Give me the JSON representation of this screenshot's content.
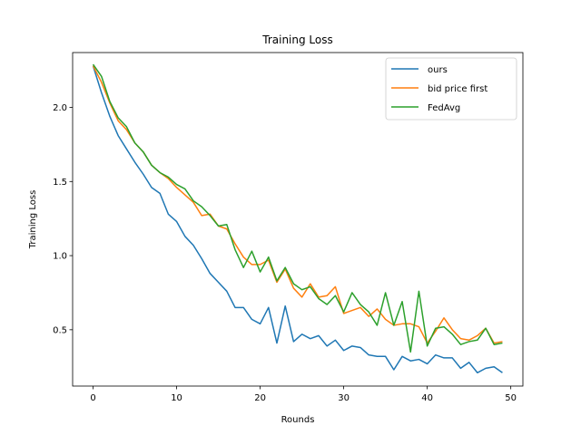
{
  "chart_data": {
    "type": "line",
    "title": "Training Loss",
    "xlabel": "Rounds",
    "ylabel": "Training Loss",
    "xlim": [
      -2.45,
      51.45
    ],
    "ylim": [
      0.12,
      2.37
    ],
    "xticks": [
      0,
      10,
      20,
      30,
      40,
      50
    ],
    "yticks": [
      0.5,
      1.0,
      1.5,
      2.0
    ],
    "yticks_text": [
      "0.5",
      "1.0",
      "1.5",
      "2.0"
    ],
    "grid": false,
    "legend_position": "top-right",
    "x": [
      0,
      1,
      2,
      3,
      4,
      5,
      6,
      7,
      8,
      9,
      10,
      11,
      12,
      13,
      14,
      15,
      16,
      17,
      18,
      19,
      20,
      21,
      22,
      23,
      24,
      25,
      26,
      27,
      28,
      29,
      30,
      31,
      32,
      33,
      34,
      35,
      36,
      37,
      38,
      39,
      40,
      41,
      42,
      43,
      44,
      45,
      46,
      47,
      48,
      49
    ],
    "series": [
      {
        "name": "ours",
        "color": "#1f77b4",
        "values": [
          2.28,
          2.1,
          1.94,
          1.81,
          1.72,
          1.63,
          1.55,
          1.46,
          1.42,
          1.28,
          1.23,
          1.13,
          1.07,
          0.98,
          0.88,
          0.82,
          0.76,
          0.65,
          0.65,
          0.57,
          0.54,
          0.65,
          0.41,
          0.66,
          0.42,
          0.47,
          0.44,
          0.46,
          0.39,
          0.43,
          0.36,
          0.39,
          0.38,
          0.33,
          0.32,
          0.32,
          0.23,
          0.32,
          0.29,
          0.3,
          0.27,
          0.33,
          0.31,
          0.31,
          0.24,
          0.28,
          0.21,
          0.24,
          0.25,
          0.21
        ]
      },
      {
        "name": "bid price first",
        "color": "#ff7f0e",
        "values": [
          2.28,
          2.17,
          2.03,
          1.91,
          1.85,
          1.76,
          1.7,
          1.61,
          1.56,
          1.52,
          1.46,
          1.41,
          1.36,
          1.27,
          1.28,
          1.2,
          1.18,
          1.08,
          0.99,
          0.94,
          0.94,
          0.97,
          0.82,
          0.91,
          0.78,
          0.72,
          0.81,
          0.72,
          0.73,
          0.79,
          0.61,
          0.63,
          0.65,
          0.59,
          0.64,
          0.57,
          0.53,
          0.54,
          0.54,
          0.52,
          0.41,
          0.49,
          0.58,
          0.5,
          0.44,
          0.43,
          0.46,
          0.51,
          0.41,
          0.42
        ]
      },
      {
        "name": "FedAvg",
        "color": "#2ca02c",
        "values": [
          2.29,
          2.21,
          2.04,
          1.93,
          1.87,
          1.76,
          1.7,
          1.61,
          1.56,
          1.53,
          1.48,
          1.45,
          1.37,
          1.33,
          1.27,
          1.2,
          1.21,
          1.04,
          0.92,
          1.03,
          0.89,
          0.99,
          0.83,
          0.92,
          0.81,
          0.77,
          0.79,
          0.71,
          0.67,
          0.73,
          0.62,
          0.75,
          0.67,
          0.62,
          0.53,
          0.75,
          0.53,
          0.69,
          0.35,
          0.76,
          0.39,
          0.51,
          0.52,
          0.47,
          0.4,
          0.42,
          0.43,
          0.51,
          0.4,
          0.41
        ]
      }
    ]
  }
}
